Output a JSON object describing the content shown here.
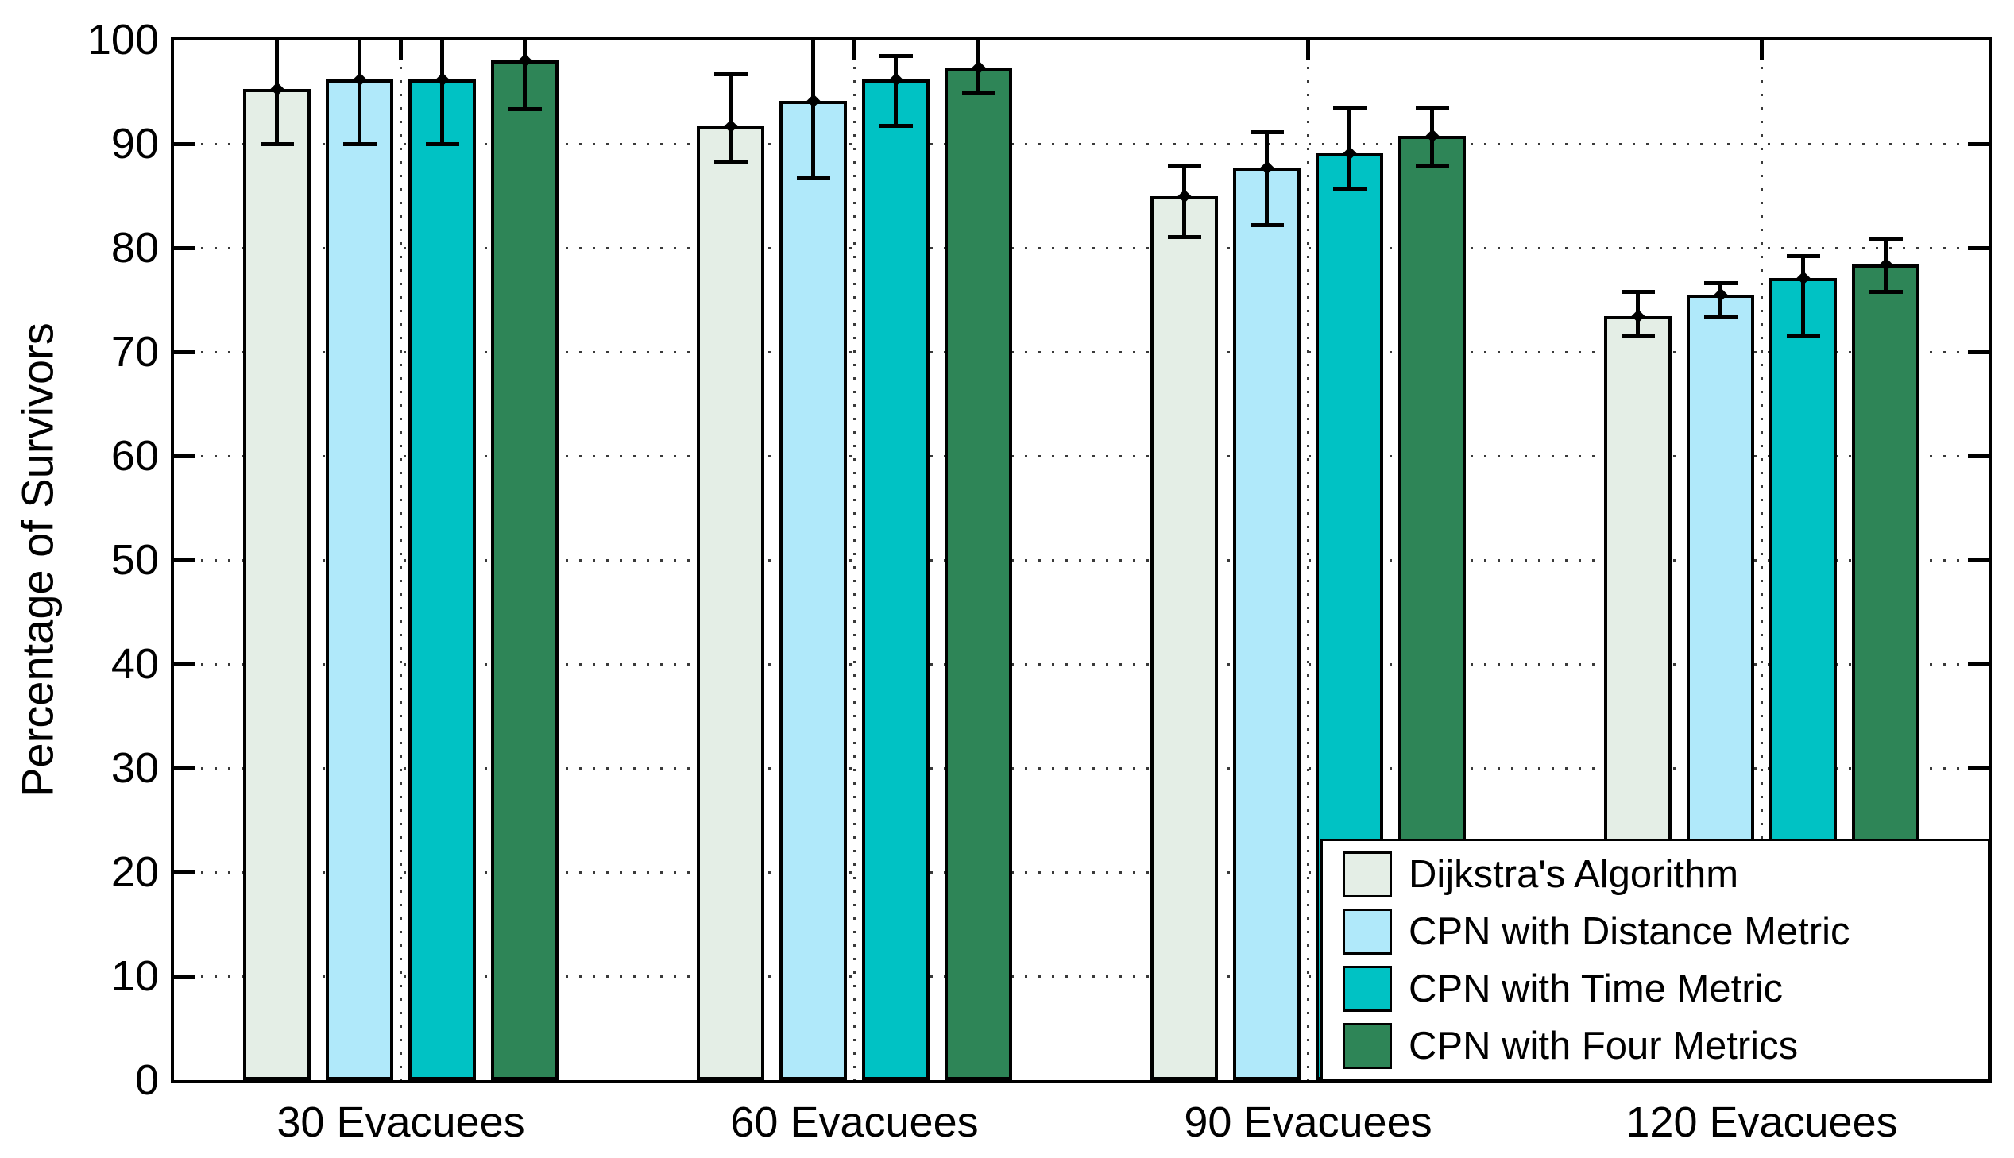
{
  "figure": {
    "background": "#ffffff",
    "axes_border_color": "#000000",
    "grid_style": "dotted",
    "grid_color": "#3a3a3a"
  },
  "chart_data": {
    "type": "bar",
    "title": "",
    "xlabel": "",
    "ylabel": "Percentage of Survivors",
    "ylim": [
      0,
      100
    ],
    "yticks": [
      0,
      10,
      20,
      30,
      40,
      50,
      60,
      70,
      80,
      90,
      100
    ],
    "grid": "dotted horizontal lines at each y tick; dotted vertical line at each category center",
    "legend_position": "lower right inside axes",
    "categories": [
      "30 Evacuees",
      "60 Evacuees",
      "90 Evacuees",
      "120 Evacuees"
    ],
    "series": [
      {
        "name": "Dijkstra's Algorithm",
        "color": "#e4eee6",
        "values": [
          95.3,
          91.7,
          85.0,
          73.4
        ],
        "err_low": [
          90.0,
          88.3,
          81.0,
          71.6
        ],
        "err_high": [
          100.5,
          96.7,
          87.8,
          75.8
        ]
      },
      {
        "name": "CPN with Distance Metric",
        "color": "#b0e9fa",
        "values": [
          96.2,
          94.1,
          87.7,
          75.5
        ],
        "err_low": [
          90.0,
          86.7,
          82.2,
          73.3
        ],
        "err_high": [
          102.0,
          101.5,
          91.1,
          76.6
        ]
      },
      {
        "name": "CPN with Time Metric",
        "color": "#00c2c4",
        "values": [
          96.2,
          96.2,
          89.1,
          77.1
        ],
        "err_low": [
          90.0,
          91.7,
          85.7,
          71.6
        ],
        "err_high": [
          101.5,
          98.4,
          93.4,
          79.2
        ]
      },
      {
        "name": "CPN with Four Metrics",
        "color": "#2e8557",
        "values": [
          98.0,
          97.3,
          90.8,
          78.4
        ],
        "err_low": [
          93.3,
          94.9,
          87.8,
          75.8
        ],
        "err_high": [
          102.3,
          100.8,
          93.4,
          80.8
        ]
      }
    ],
    "error_bars": "caps mark absolute low/high values; highs above 100 are clipped by the top axis"
  },
  "legend": {
    "items": [
      "Dijkstra's Algorithm",
      "CPN with Distance Metric",
      "CPN with Time Metric",
      "CPN with Four Metrics"
    ]
  }
}
